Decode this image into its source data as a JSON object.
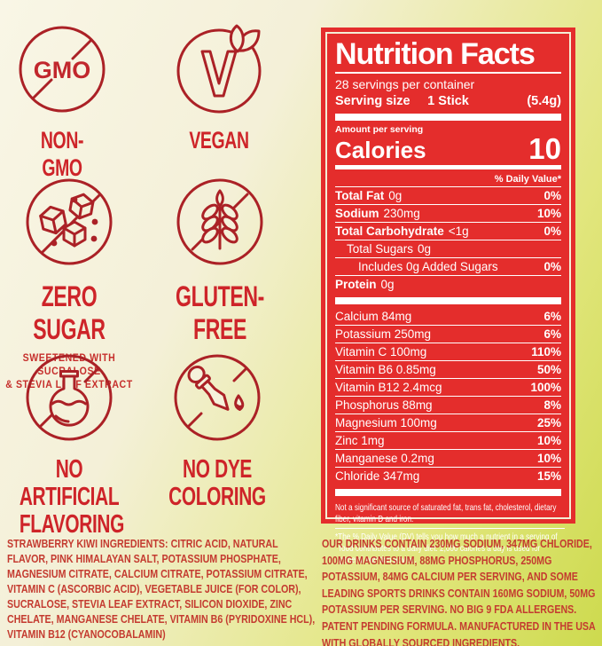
{
  "colors": {
    "background_top_left": "#f9f6e6",
    "background_bottom_right": "#cdda4e",
    "panel_red": "#e42d2c",
    "panel_border_cream": "#f3eed6",
    "icon_stroke_red": "#ab2126",
    "heading_red": "#ce2429",
    "body_text_red": "#c43b30"
  },
  "badges": [
    {
      "id": "non-gmo",
      "label": "NON-GMO",
      "icon": "no-gmo-icon"
    },
    {
      "id": "vegan",
      "label": "VEGAN",
      "icon": "vegan-v-leaf-icon"
    },
    {
      "id": "zero-sugar",
      "label": "ZERO SUGAR",
      "sublabel": "SWEETENED WITH SUCRALOSE\n&  STEVIA LEAF EXTRACT",
      "icon": "no-sugar-cubes-icon"
    },
    {
      "id": "gluten-free",
      "label": "GLUTEN-FREE",
      "icon": "no-wheat-icon"
    },
    {
      "id": "no-artificial-flavoring",
      "label": "NO ARTIFICIAL\nFLAVORING",
      "icon": "no-flask-icon"
    },
    {
      "id": "no-dye-coloring",
      "label": "NO DYE\nCOLORING",
      "icon": "no-dropper-icon"
    }
  ],
  "nutrition_facts": {
    "title": "Nutrition Facts",
    "servings_per_container": "28 servings per container",
    "serving_size_label": "Serving size",
    "serving_size_value": "1 Stick",
    "serving_size_weight": "(5.4g)",
    "amount_per_serving_label": "Amount per serving",
    "calories_label": "Calories",
    "calories_value": "10",
    "daily_value_header": "% Daily Value*",
    "main_rows": [
      {
        "label": "Total Fat",
        "amount": "0g",
        "dv": "0%",
        "style": "bold",
        "indent": 0
      },
      {
        "label": "Sodium",
        "amount": "230mg",
        "dv": "10%",
        "style": "bold",
        "indent": 0
      },
      {
        "label": "Total Carbohydrate",
        "amount": "<1g",
        "dv": "0%",
        "style": "bold",
        "indent": 0
      },
      {
        "label": "Total Sugars",
        "amount": "0g",
        "dv": "",
        "style": "regular",
        "indent": 1
      },
      {
        "label": "Includes 0g Added Sugars",
        "amount": "",
        "dv": "0%",
        "style": "regular",
        "indent": 2
      },
      {
        "label": "Protein",
        "amount": "0g",
        "dv": "",
        "style": "bold",
        "indent": 0
      }
    ],
    "micronutrient_rows": [
      {
        "label": "Calcium 84mg",
        "dv": "6%"
      },
      {
        "label": "Potassium 250mg",
        "dv": "6%"
      },
      {
        "label": "Vitamin C 100mg",
        "dv": "110%"
      },
      {
        "label": "Vitamin B6 0.85mg",
        "dv": "50%"
      },
      {
        "label": "Vitamin B12 2.4mcg",
        "dv": "100%"
      },
      {
        "label": "Phosphorus 88mg",
        "dv": "8%"
      },
      {
        "label": "Magnesium 100mg",
        "dv": "25%"
      },
      {
        "label": "Zinc 1mg",
        "dv": "10%"
      },
      {
        "label": "Manganese 0.2mg",
        "dv": "10%"
      },
      {
        "label": "Chloride 347mg",
        "dv": "15%"
      }
    ],
    "footnote_1": "Not a significant source of saturated fat, trans fat, cholesterol, dietary fiber, vitamin D and iron.",
    "footnote_2": "*The % Daily Value (DV) tells you how much a nutrient in a serving of food contributes to a daily diet. 2,000 calories a day is used for general nutrition advice."
  },
  "ingredients": {
    "lead": "STRAWBERRY KIWI INGREDIENTS:",
    "text": " CITRIC ACID, NATURAL FLAVOR, PINK HIMALAYAN SALT, POTASSIUM PHOSPHATE, MAGNESIUM CITRATE, CALCIUM CITRATE, POTASSIUM CITRATE, VITAMIN C (ASCORBIC ACID), VEGETABLE JUICE (FOR COLOR), SUCRALOSE, STEVIA LEAF EXTRACT, SILICON DIOXIDE, ZINC CHELATE, MANGANESE CHELATE, VITAMIN B6 (PYRIDOXINE HCL), VITAMIN B12 (CYANOCOBALAMIN)"
  },
  "comparison_note": "OUR DRINKS CONTAIN 230MG SODIUM, 347MG CHLORIDE, 100MG MAGNESIUM, 88MG PHOSPHORUS, 250MG POTASSIUM, 84MG CALCIUM PER SERVING, AND SOME LEADING SPORTS DRINKS CONTAIN 160MG SODIUM, 50MG POTASSIUM PER SERVING. NO BIG 9 FDA ALLERGENS. PATENT PENDING FORMULA. MANUFACTURED IN THE USA WITH GLOBALLY SOURCED INGREDIENTS."
}
